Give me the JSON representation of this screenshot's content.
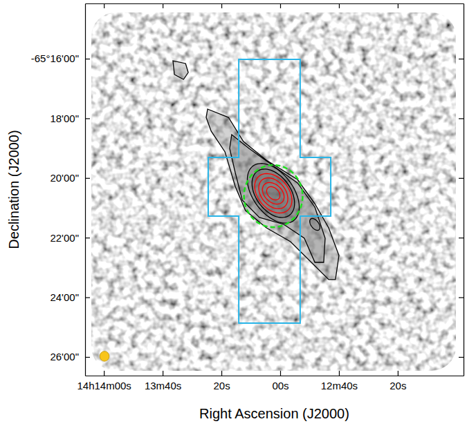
{
  "chart_data": {
    "type": "contour_map",
    "x_label": "Right Ascension (J2000)",
    "y_label": "Declination (J2000)",
    "xlim": [
      51246.4,
      51117.6
    ],
    "ylim": [
      -235597.5,
      -234848.9
    ],
    "xticks": [
      {
        "value": 51240,
        "label": "14h14m00s"
      },
      {
        "value": 51220,
        "label": "13m40s"
      },
      {
        "value": 51200,
        "label": "20s"
      },
      {
        "value": 51180,
        "label": "00s"
      },
      {
        "value": 51160,
        "label": "12m40s"
      },
      {
        "value": 51140,
        "label": "20s"
      }
    ],
    "yticks": [
      {
        "value": -234960,
        "label": "-65°16'00\""
      },
      {
        "value": -235080,
        "label": "18'00\""
      },
      {
        "value": -235200,
        "label": "20'00\""
      },
      {
        "value": -235320,
        "label": "22'00\""
      },
      {
        "value": -235440,
        "label": "24'00\""
      },
      {
        "value": -235560,
        "label": "26'00\""
      }
    ],
    "contours": [
      {
        "color": "black",
        "x": [
          51204.7,
          51197.6,
          51192.5,
          51184.7,
          51174.1,
          51168.2,
          51163.5,
          51160.0,
          51161.2,
          51163.5,
          51169.4,
          51176.5,
          51184.7,
          51191.8,
          51195.3,
          51198.8,
          51203.5,
          51205.2
        ],
        "y": [
          -235061.4,
          -235078.1,
          -235126.7,
          -235164.2,
          -235203.1,
          -235251.7,
          -235300.3,
          -235355.8,
          -235404.4,
          -235404.4,
          -235369.7,
          -235328.1,
          -235300.3,
          -235265.6,
          -235216.9,
          -235147.5,
          -235105.8,
          -235078.1
        ]
      },
      {
        "color": "black",
        "x": [
          51216.5,
          51212.2,
          51211.3,
          51212.9,
          51216.0
        ],
        "y": [
          -234964.2,
          -234969.7,
          -234987.8,
          -235001.7,
          -234991.9
        ]
      },
      {
        "color": "black",
        "x": [
          51196.5,
          51190.6,
          51182.4,
          51174.1,
          51168.2,
          51164.7,
          51165.2,
          51168.2,
          51171.8,
          51178.8,
          51187.1,
          51192.9,
          51195.3,
          51197.2
        ],
        "y": [
          -235112.8,
          -235140.6,
          -235175.3,
          -235210.0,
          -235258.6,
          -235321.1,
          -235369.7,
          -235369.7,
          -235321.1,
          -235293.3,
          -235279.4,
          -235244.7,
          -235189.2,
          -235140.6
        ]
      }
    ],
    "ellipses": [
      {
        "color": "black",
        "x": 51182.35,
        "y": -235230.8,
        "a": 70,
        "b": 42,
        "pa": 40
      },
      {
        "color": "black",
        "x": 51182.35,
        "y": -235230.8,
        "a": 56,
        "b": 36,
        "pa": 40
      },
      {
        "color": "black",
        "x": 51168.2,
        "y": -235293.3,
        "a": 14,
        "b": 8,
        "pa": 40
      },
      {
        "color": "red",
        "x": 51182.35,
        "y": -235230.8,
        "a": 46,
        "b": 32,
        "pa": 45
      },
      {
        "color": "red",
        "x": 51182.35,
        "y": -235230.8,
        "a": 36,
        "b": 25,
        "pa": 45
      },
      {
        "color": "red",
        "x": 51182.35,
        "y": -235230.8,
        "a": 26,
        "b": 18,
        "pa": 50
      },
      {
        "color": "red",
        "x": 51182.35,
        "y": -235230.8,
        "a": 16,
        "b": 11,
        "pa": 50
      }
    ],
    "regions": [
      {
        "color": "#29b5e8",
        "x": [
          51194.1,
          51173.2,
          51173.2,
          51162.8,
          51162.8,
          51173.2,
          51173.2,
          51194.1,
          51194.1,
          51204.5,
          51204.5,
          51194.1
        ],
        "y": [
          -234961.4,
          -234961.4,
          -235158.6,
          -235158.6,
          -235276.7,
          -235276.7,
          -235491.9,
          -235491.9,
          -235276.7,
          -235276.7,
          -235158.6,
          -235158.6
        ]
      }
    ],
    "circles": [
      {
        "color": "#1fe01f",
        "line_style": "dashed",
        "x": 51182.35,
        "y": -235236.4,
        "radius": 62.5
      },
      {
        "color": "#f8c51c",
        "line_style": "solid",
        "x": 51239.8,
        "y": -235558.6,
        "radius": 10
      }
    ]
  }
}
